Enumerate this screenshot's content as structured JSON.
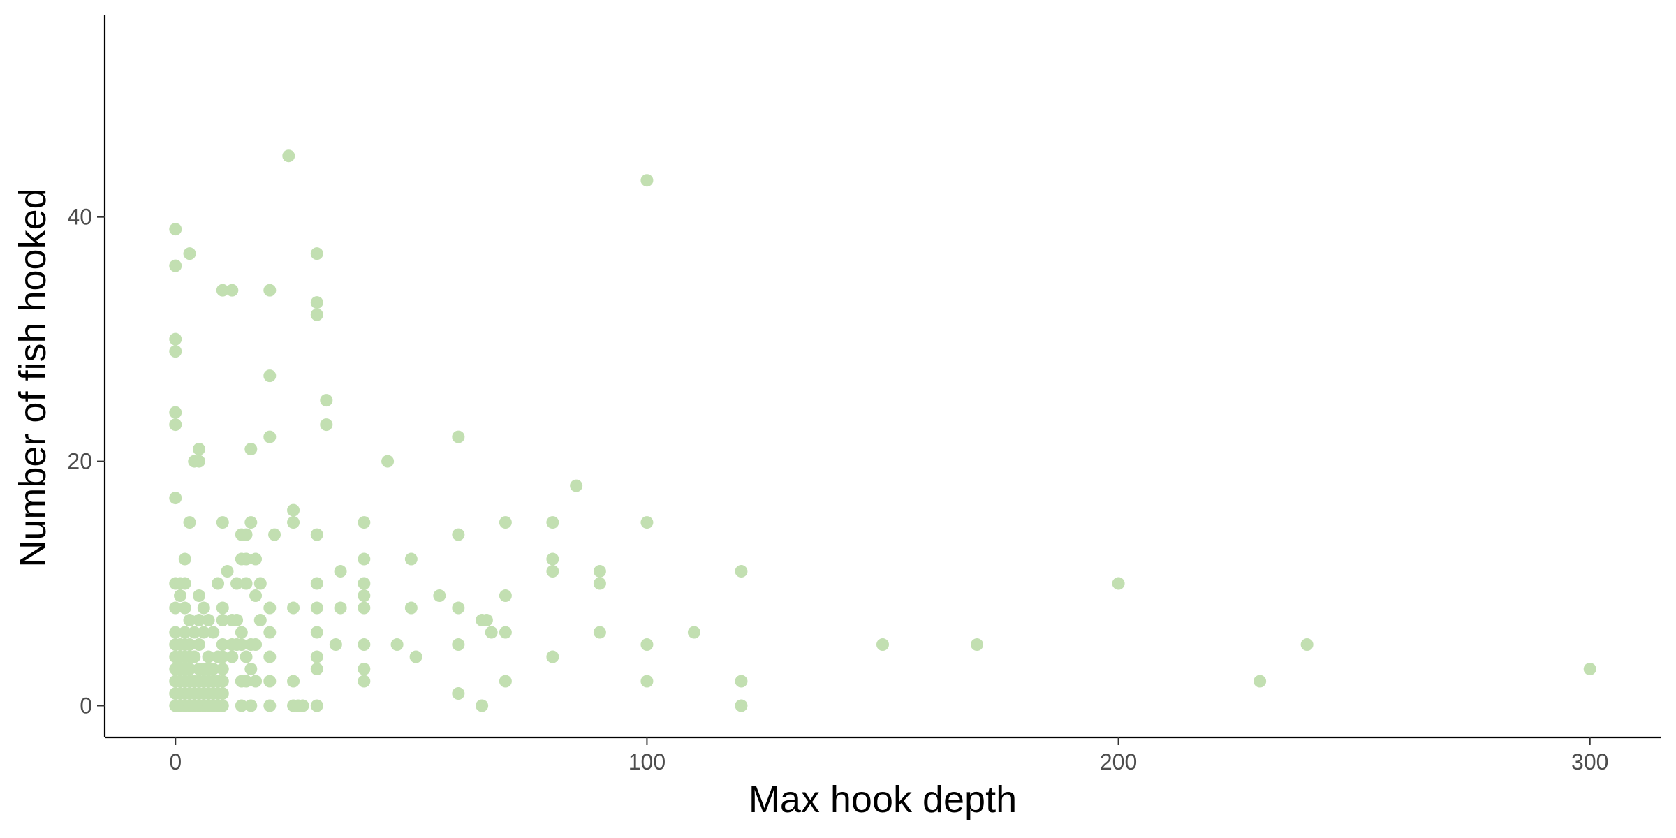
{
  "chart_data": {
    "type": "scatter",
    "title": "",
    "xlabel": "Max hook depth",
    "ylabel": "Number of fish hooked",
    "xlim": [
      -15,
      315
    ],
    "ylim": [
      -2.6,
      56.5
    ],
    "x_ticks": [
      0,
      100,
      200,
      300
    ],
    "y_ticks": [
      0,
      20,
      40
    ],
    "grid": false,
    "legend": "none",
    "point_color": "#c2dfb1",
    "axis_color": "#000000",
    "series": [
      {
        "points": [
          [
            0,
            39
          ],
          [
            0,
            36
          ],
          [
            0,
            30
          ],
          [
            0,
            29
          ],
          [
            0,
            24
          ],
          [
            0,
            23
          ],
          [
            0,
            17
          ],
          [
            0,
            10
          ],
          [
            0,
            8
          ],
          [
            0,
            6
          ],
          [
            0,
            5
          ],
          [
            0,
            4
          ],
          [
            0,
            3
          ],
          [
            0,
            2
          ],
          [
            0,
            1
          ],
          [
            0,
            0
          ],
          [
            1,
            10
          ],
          [
            1,
            9
          ],
          [
            1,
            5
          ],
          [
            1,
            4
          ],
          [
            1,
            3
          ],
          [
            1,
            2
          ],
          [
            1,
            1
          ],
          [
            1,
            0
          ],
          [
            2,
            12
          ],
          [
            2,
            10
          ],
          [
            2,
            8
          ],
          [
            2,
            6
          ],
          [
            2,
            5
          ],
          [
            2,
            4
          ],
          [
            2,
            3
          ],
          [
            2,
            2
          ],
          [
            2,
            1
          ],
          [
            2,
            0
          ],
          [
            3,
            37
          ],
          [
            3,
            15
          ],
          [
            3,
            7
          ],
          [
            3,
            5
          ],
          [
            3,
            4
          ],
          [
            3,
            3
          ],
          [
            3,
            2
          ],
          [
            3,
            1
          ],
          [
            3,
            0
          ],
          [
            4,
            20
          ],
          [
            4,
            6
          ],
          [
            4,
            4
          ],
          [
            4,
            2
          ],
          [
            4,
            1
          ],
          [
            4,
            0
          ],
          [
            5,
            21
          ],
          [
            5,
            20
          ],
          [
            5,
            9
          ],
          [
            5,
            7
          ],
          [
            5,
            5
          ],
          [
            5,
            3
          ],
          [
            5,
            2
          ],
          [
            5,
            1
          ],
          [
            5,
            0
          ],
          [
            6,
            8
          ],
          [
            6,
            6
          ],
          [
            6,
            3
          ],
          [
            6,
            2
          ],
          [
            6,
            1
          ],
          [
            6,
            0
          ],
          [
            7,
            7
          ],
          [
            7,
            4
          ],
          [
            7,
            3
          ],
          [
            7,
            2
          ],
          [
            7,
            1
          ],
          [
            7,
            0
          ],
          [
            8,
            6
          ],
          [
            8,
            3
          ],
          [
            8,
            2
          ],
          [
            8,
            1
          ],
          [
            8,
            0
          ],
          [
            9,
            10
          ],
          [
            9,
            4
          ],
          [
            9,
            2
          ],
          [
            9,
            1
          ],
          [
            9,
            0
          ],
          [
            10,
            34
          ],
          [
            10,
            15
          ],
          [
            10,
            8
          ],
          [
            10,
            7
          ],
          [
            10,
            5
          ],
          [
            10,
            4
          ],
          [
            10,
            3
          ],
          [
            10,
            2
          ],
          [
            10,
            1
          ],
          [
            10,
            0
          ],
          [
            11,
            11
          ],
          [
            12,
            34
          ],
          [
            12,
            7
          ],
          [
            12,
            5
          ],
          [
            12,
            4
          ],
          [
            13,
            10
          ],
          [
            13,
            7
          ],
          [
            13,
            5
          ],
          [
            14,
            14
          ],
          [
            14,
            12
          ],
          [
            14,
            6
          ],
          [
            14,
            5
          ],
          [
            14,
            2
          ],
          [
            14,
            0
          ],
          [
            15,
            14
          ],
          [
            15,
            12
          ],
          [
            15,
            10
          ],
          [
            15,
            4
          ],
          [
            15,
            2
          ],
          [
            16,
            21
          ],
          [
            16,
            15
          ],
          [
            16,
            3
          ],
          [
            16,
            5
          ],
          [
            16,
            0
          ],
          [
            17,
            12
          ],
          [
            17,
            9
          ],
          [
            17,
            5
          ],
          [
            17,
            2
          ],
          [
            18,
            10
          ],
          [
            18,
            7
          ],
          [
            20,
            34
          ],
          [
            20,
            27
          ],
          [
            20,
            22
          ],
          [
            20,
            8
          ],
          [
            20,
            6
          ],
          [
            20,
            4
          ],
          [
            20,
            2
          ],
          [
            20,
            0
          ],
          [
            21,
            14
          ],
          [
            24,
            45
          ],
          [
            25,
            16
          ],
          [
            25,
            15
          ],
          [
            25,
            8
          ],
          [
            25,
            2
          ],
          [
            25,
            0
          ],
          [
            26,
            0
          ],
          [
            27,
            0
          ],
          [
            30,
            37
          ],
          [
            30,
            33
          ],
          [
            30,
            32
          ],
          [
            30,
            14
          ],
          [
            30,
            10
          ],
          [
            30,
            8
          ],
          [
            30,
            6
          ],
          [
            30,
            4
          ],
          [
            30,
            3
          ],
          [
            30,
            0
          ],
          [
            32,
            25
          ],
          [
            32,
            23
          ],
          [
            34,
            5
          ],
          [
            35,
            11
          ],
          [
            35,
            8
          ],
          [
            40,
            15
          ],
          [
            40,
            12
          ],
          [
            40,
            10
          ],
          [
            40,
            9
          ],
          [
            40,
            8
          ],
          [
            40,
            5
          ],
          [
            40,
            3
          ],
          [
            40,
            2
          ],
          [
            45,
            20
          ],
          [
            47,
            5
          ],
          [
            50,
            12
          ],
          [
            50,
            8
          ],
          [
            51,
            4
          ],
          [
            56,
            9
          ],
          [
            60,
            22
          ],
          [
            60,
            14
          ],
          [
            60,
            8
          ],
          [
            60,
            5
          ],
          [
            60,
            1
          ],
          [
            65,
            7
          ],
          [
            65,
            0
          ],
          [
            66,
            7
          ],
          [
            67,
            6
          ],
          [
            70,
            15
          ],
          [
            70,
            9
          ],
          [
            70,
            6
          ],
          [
            70,
            2
          ],
          [
            80,
            15
          ],
          [
            80,
            12
          ],
          [
            80,
            11
          ],
          [
            80,
            4
          ],
          [
            85,
            18
          ],
          [
            90,
            11
          ],
          [
            90,
            10
          ],
          [
            90,
            6
          ],
          [
            100,
            43
          ],
          [
            100,
            15
          ],
          [
            100,
            5
          ],
          [
            100,
            2
          ],
          [
            110,
            6
          ],
          [
            120,
            11
          ],
          [
            120,
            2
          ],
          [
            120,
            0
          ],
          [
            150,
            5
          ],
          [
            170,
            5
          ],
          [
            200,
            10
          ],
          [
            230,
            2
          ],
          [
            240,
            5
          ],
          [
            300,
            3
          ]
        ]
      }
    ]
  }
}
